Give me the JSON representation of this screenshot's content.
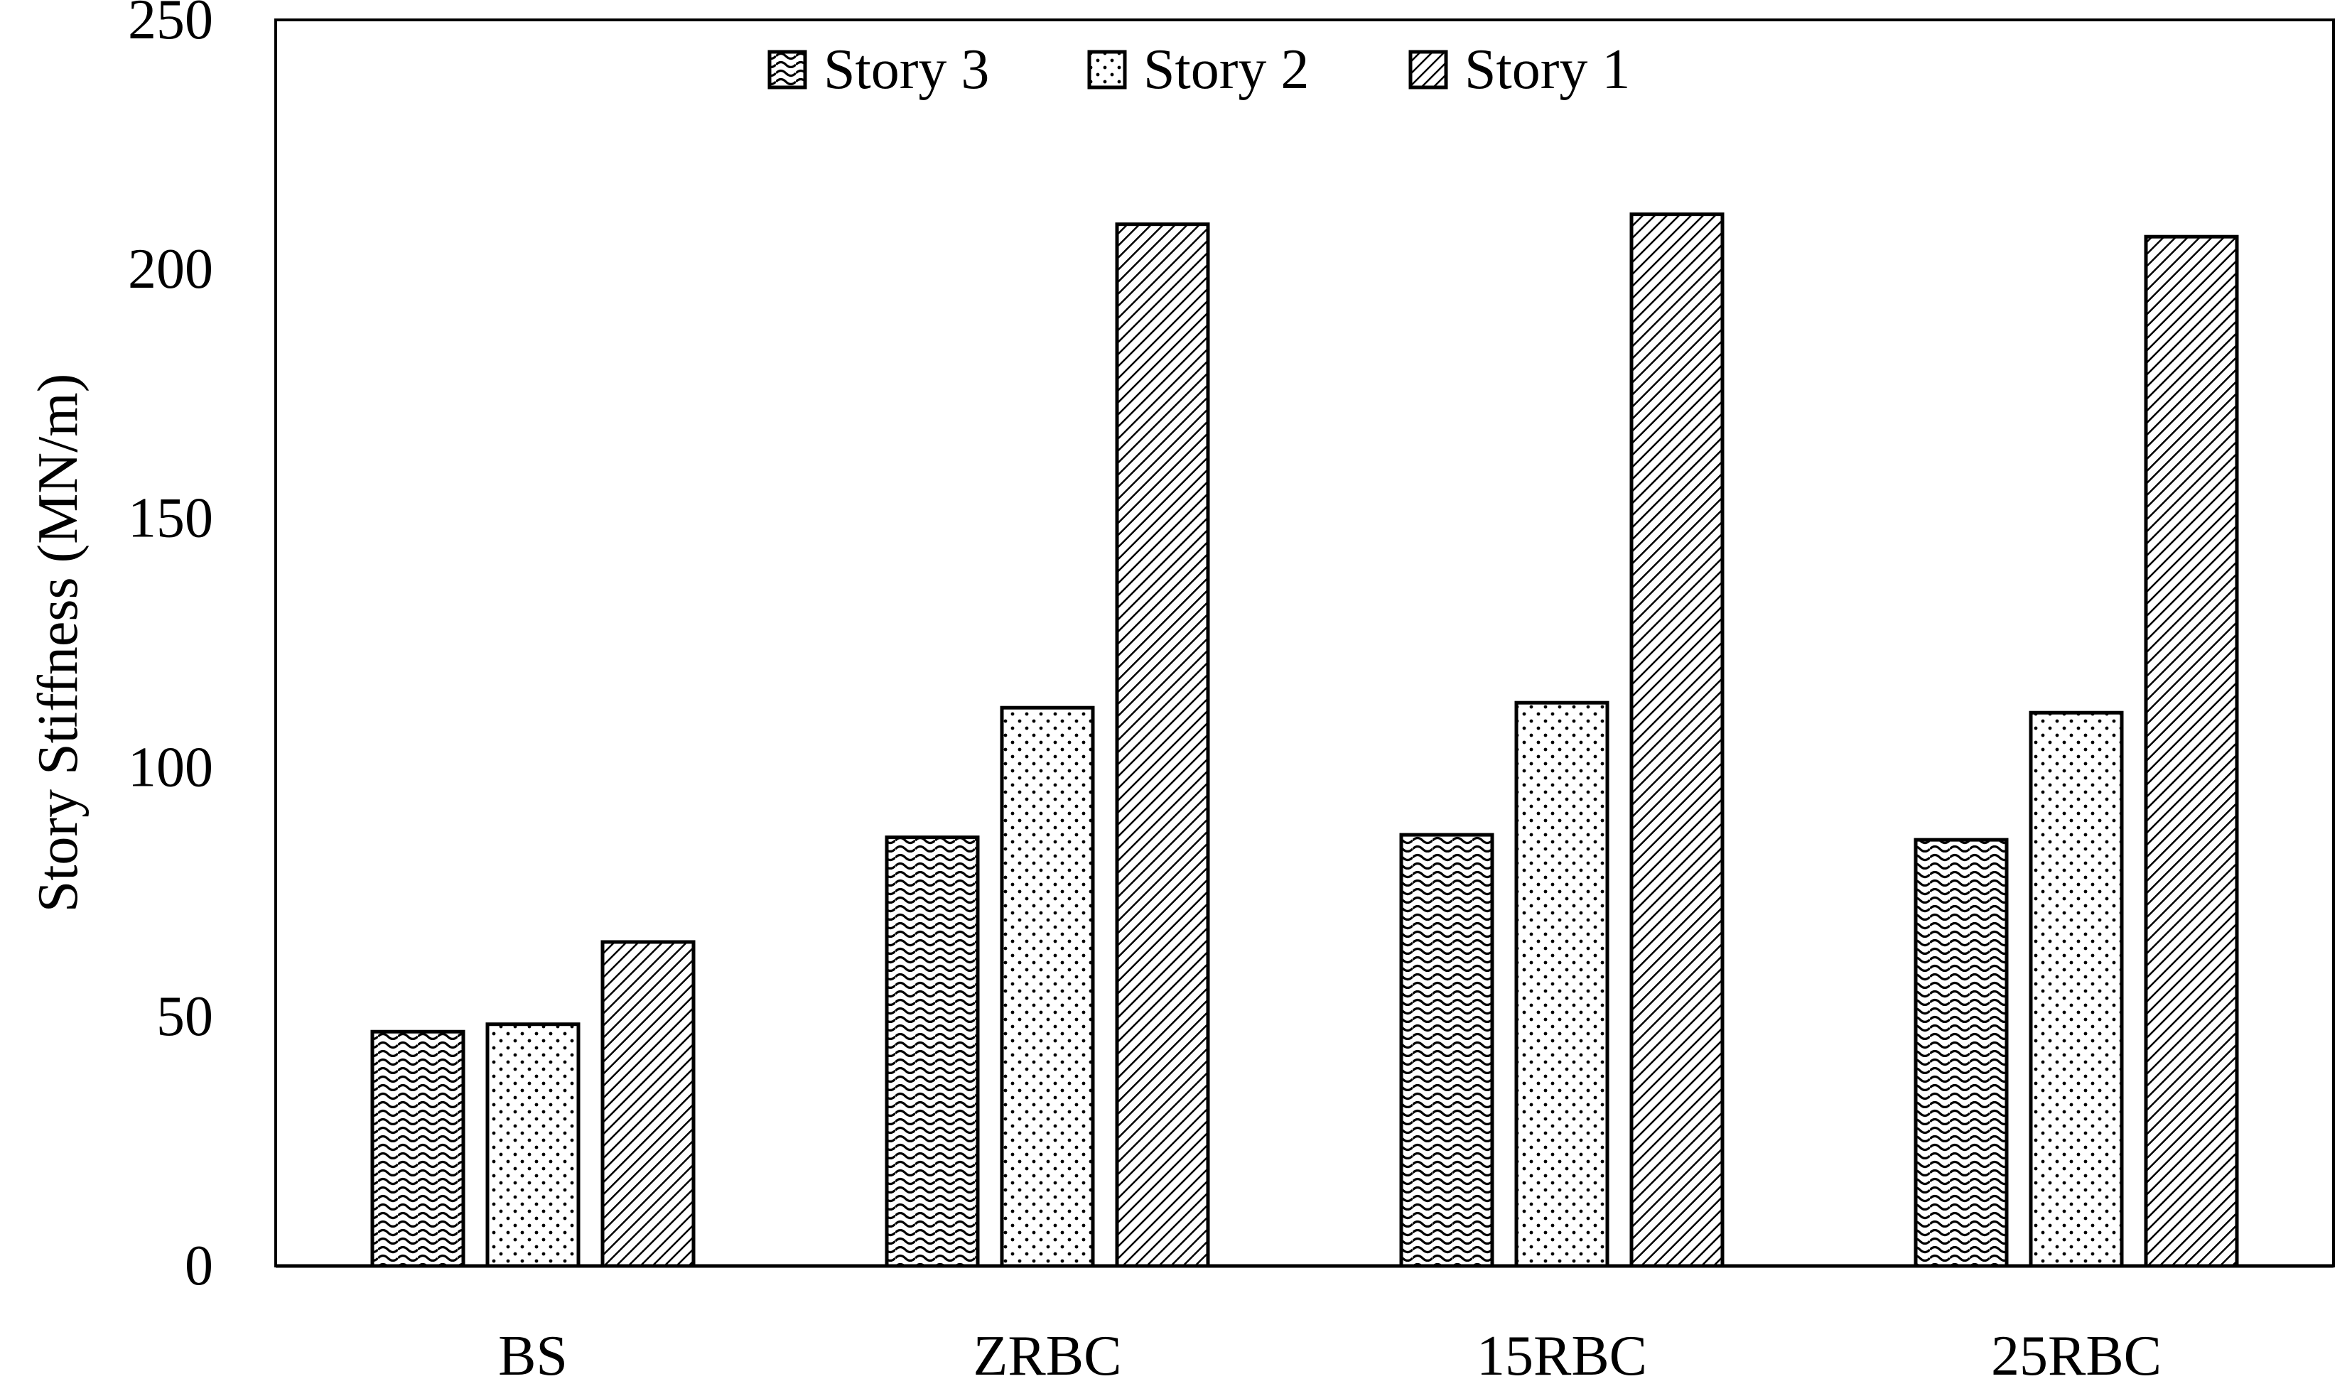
{
  "chart_data": {
    "type": "bar",
    "title": "",
    "xlabel": "",
    "ylabel": "Story Stiffness (MN/m)",
    "categories": [
      "BS",
      "ZRBC",
      "15RBC",
      "25RBC"
    ],
    "ylim": [
      0,
      250
    ],
    "yticks": [
      "0",
      "50",
      "100",
      "150",
      "200",
      "250"
    ],
    "series": [
      {
        "name": "Story 3",
        "pattern": "wave-icon",
        "values": [
          47,
          86,
          86.5,
          85.5
        ]
      },
      {
        "name": "Story 2",
        "pattern": "dots-icon",
        "values": [
          48.5,
          112,
          113,
          111
        ]
      },
      {
        "name": "Story 1",
        "pattern": "diagonal-hatch-icon",
        "values": [
          65,
          209,
          211,
          206.5
        ]
      }
    ],
    "legend_position": "top-center",
    "grid": false
  }
}
